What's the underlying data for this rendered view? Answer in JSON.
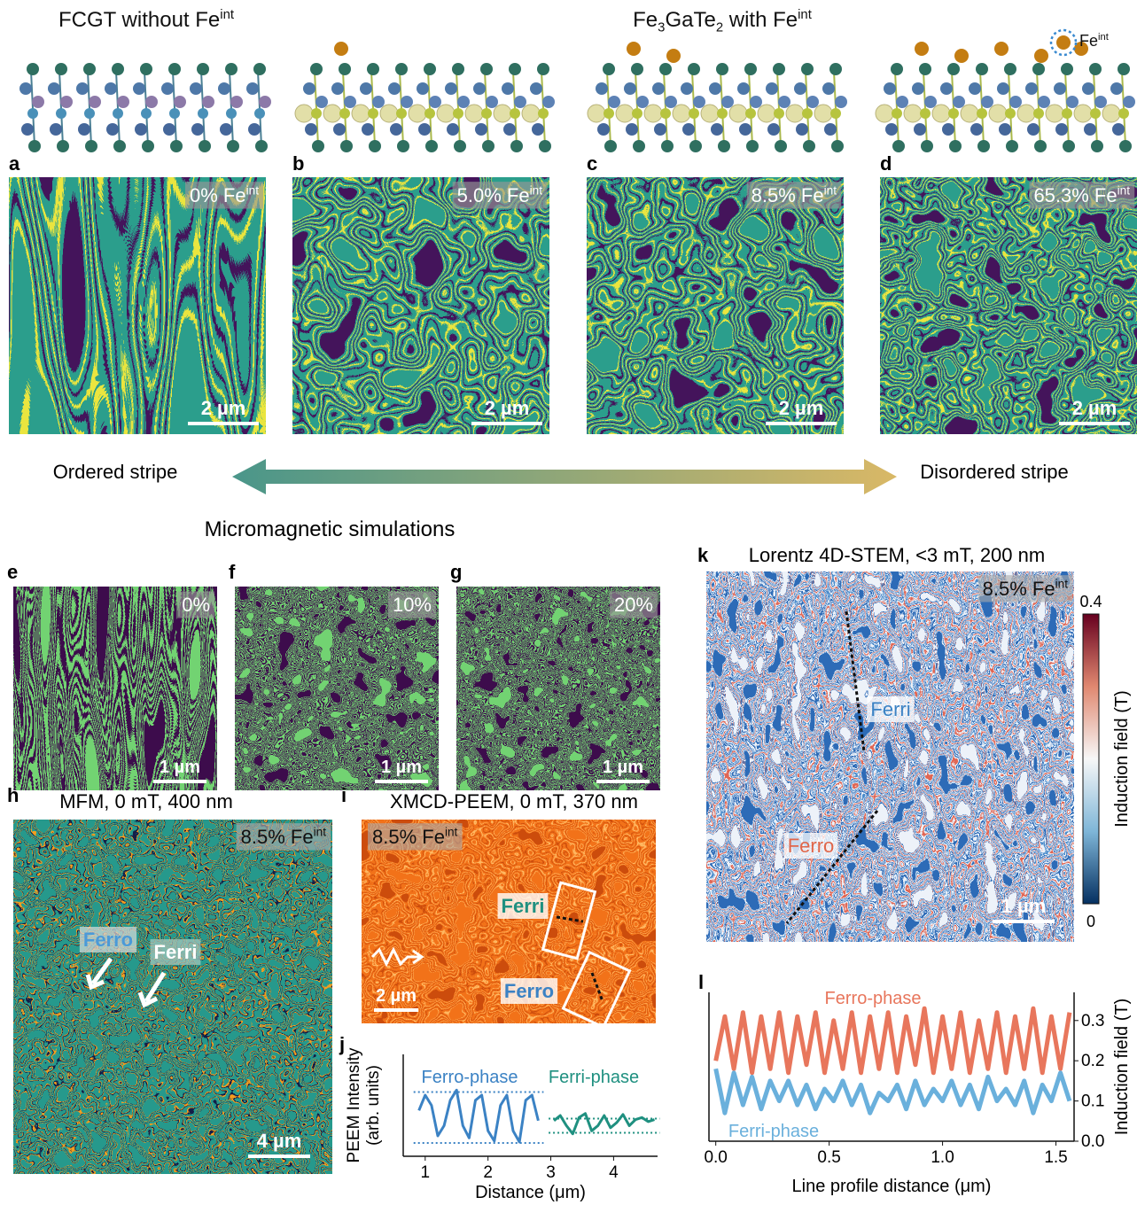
{
  "header": {
    "left": [
      {
        "text": "FCGT without Fe"
      },
      {
        "text": "int",
        "sup": true
      }
    ],
    "right": [
      {
        "text": "Fe"
      },
      {
        "text": "3",
        "sub": true
      },
      {
        "text": "GaTe"
      },
      {
        "text": "2",
        "sub": true
      },
      {
        "text": " with Fe"
      },
      {
        "text": "int",
        "sup": true
      }
    ],
    "legend": [
      {
        "text": "Fe"
      },
      {
        "text": "int",
        "sup": true
      }
    ]
  },
  "panels_top": [
    {
      "letter": "a",
      "label": [
        {
          "text": "0% Fe"
        },
        {
          "text": "int",
          "sup": true
        }
      ],
      "scale": "2 µm"
    },
    {
      "letter": "b",
      "label": [
        {
          "text": "5.0% Fe"
        },
        {
          "text": "int",
          "sup": true
        }
      ],
      "scale": "2 µm"
    },
    {
      "letter": "c",
      "label": [
        {
          "text": "8.5% Fe"
        },
        {
          "text": "int",
          "sup": true
        }
      ],
      "scale": "2 µm"
    },
    {
      "letter": "d",
      "label": [
        {
          "text": "65.3% Fe"
        },
        {
          "text": "int",
          "sup": true
        }
      ],
      "scale": "2 µm"
    }
  ],
  "arrow": {
    "left": "Ordered stripe",
    "right": "Disordered stripe"
  },
  "simulations": {
    "title": "Micromagnetic simulations",
    "panels": [
      {
        "letter": "e",
        "label": "0%",
        "scale": "1 µm"
      },
      {
        "letter": "f",
        "label": "10%",
        "scale": "1 µm"
      },
      {
        "letter": "g",
        "label": "20%",
        "scale": "1 µm"
      }
    ]
  },
  "panel_h": {
    "letter": "h",
    "title": "MFM, 0 mT, 400 nm",
    "label": [
      {
        "text": "8.5% Fe"
      },
      {
        "text": "int",
        "sup": true
      }
    ],
    "ferro": "Ferro",
    "ferri": "Ferri",
    "scale": "4 µm"
  },
  "panel_i": {
    "letter": "i",
    "title": "XMCD-PEEM, 0 mT, 370 nm",
    "label": [
      {
        "text": "8.5% Fe"
      },
      {
        "text": "int",
        "sup": true
      }
    ],
    "ferri": "Ferri",
    "ferro": "Ferro",
    "scale": "2 µm"
  },
  "panel_k": {
    "letter": "k",
    "title": "Lorentz 4D-STEM, <3 mT, 200 nm",
    "label": [
      {
        "text": "8.5% Fe"
      },
      {
        "text": "int",
        "sup": true
      }
    ],
    "ferri": "Ferri",
    "ferro": "Ferro",
    "scale": "1 µm",
    "colorbar": {
      "lim": [
        0,
        0.4
      ],
      "ticks": [
        0.4,
        0
      ],
      "label": "Induction field (T)"
    }
  },
  "chart_data": [
    {
      "letter": "j",
      "type": "line",
      "xlabel": "Distance (μm)",
      "ylabel": [
        "PEEM Intensity",
        "(arb. units)"
      ],
      "xlim": [
        0.65,
        4.7
      ],
      "xticks": [
        1,
        2,
        3,
        4
      ],
      "ylim": [
        0,
        1
      ],
      "series": [
        {
          "name": "Ferro-phase",
          "color": "#3b82c4",
          "bounds": [
            0.13,
            0.63
          ],
          "x": [
            0.9,
            1.0,
            1.1,
            1.2,
            1.3,
            1.4,
            1.5,
            1.6,
            1.7,
            1.8,
            1.9,
            2.0,
            2.1,
            2.2,
            2.3,
            2.4,
            2.5,
            2.6,
            2.7,
            2.8
          ],
          "values": [
            0.45,
            0.6,
            0.5,
            0.2,
            0.3,
            0.55,
            0.65,
            0.3,
            0.18,
            0.55,
            0.6,
            0.25,
            0.15,
            0.5,
            0.6,
            0.25,
            0.14,
            0.55,
            0.6,
            0.35
          ]
        },
        {
          "name": "Ferri-phase",
          "color": "#1f9080",
          "bounds": [
            0.23,
            0.37
          ],
          "x": [
            3.05,
            3.15,
            3.25,
            3.35,
            3.45,
            3.55,
            3.65,
            3.75,
            3.85,
            3.95,
            4.05,
            4.15,
            4.25,
            4.35,
            4.45,
            4.55,
            4.65
          ],
          "values": [
            0.35,
            0.4,
            0.3,
            0.22,
            0.38,
            0.42,
            0.25,
            0.3,
            0.4,
            0.28,
            0.33,
            0.41,
            0.3,
            0.36,
            0.38,
            0.34,
            0.36
          ]
        }
      ]
    },
    {
      "letter": "l",
      "type": "line",
      "xlabel": "Line profile distance (μm)",
      "ylabel": "Induction field (T)",
      "xlim": [
        -0.03,
        1.58
      ],
      "ylim": [
        0,
        0.37
      ],
      "yaxis": "right",
      "xticks": [
        {
          "value": 0,
          "label": "0.0"
        },
        0.5,
        {
          "value": 1,
          "label": "1.0"
        },
        1.5
      ],
      "yticks": [
        {
          "value": 0,
          "label": "0.0"
        },
        0.1,
        0.2,
        0.3
      ],
      "x": [
        0,
        0.04,
        0.08,
        0.12,
        0.16,
        0.2,
        0.24,
        0.28,
        0.32,
        0.36,
        0.4,
        0.44,
        0.48,
        0.52,
        0.56,
        0.6,
        0.64,
        0.68,
        0.72,
        0.76,
        0.8,
        0.84,
        0.88,
        0.92,
        0.96,
        1.0,
        1.04,
        1.08,
        1.12,
        1.16,
        1.2,
        1.24,
        1.28,
        1.32,
        1.36,
        1.4,
        1.44,
        1.48,
        1.52,
        1.56
      ],
      "series": [
        {
          "name": "Ferro-phase",
          "color": "#e8765c",
          "values": [
            0.2,
            0.31,
            0.18,
            0.32,
            0.17,
            0.31,
            0.18,
            0.32,
            0.17,
            0.31,
            0.19,
            0.32,
            0.17,
            0.3,
            0.18,
            0.32,
            0.17,
            0.31,
            0.18,
            0.32,
            0.17,
            0.31,
            0.19,
            0.33,
            0.17,
            0.31,
            0.18,
            0.32,
            0.17,
            0.3,
            0.18,
            0.32,
            0.17,
            0.31,
            0.18,
            0.33,
            0.17,
            0.31,
            0.18,
            0.32
          ]
        },
        {
          "name": "Ferri-phase",
          "color": "#6ab0dc",
          "values": [
            0.18,
            0.07,
            0.17,
            0.09,
            0.16,
            0.08,
            0.15,
            0.1,
            0.15,
            0.09,
            0.14,
            0.08,
            0.13,
            0.1,
            0.15,
            0.09,
            0.14,
            0.07,
            0.12,
            0.1,
            0.14,
            0.08,
            0.15,
            0.09,
            0.13,
            0.1,
            0.15,
            0.09,
            0.14,
            0.08,
            0.16,
            0.1,
            0.13,
            0.09,
            0.15,
            0.07,
            0.14,
            0.1,
            0.17,
            0.1
          ]
        }
      ]
    }
  ]
}
